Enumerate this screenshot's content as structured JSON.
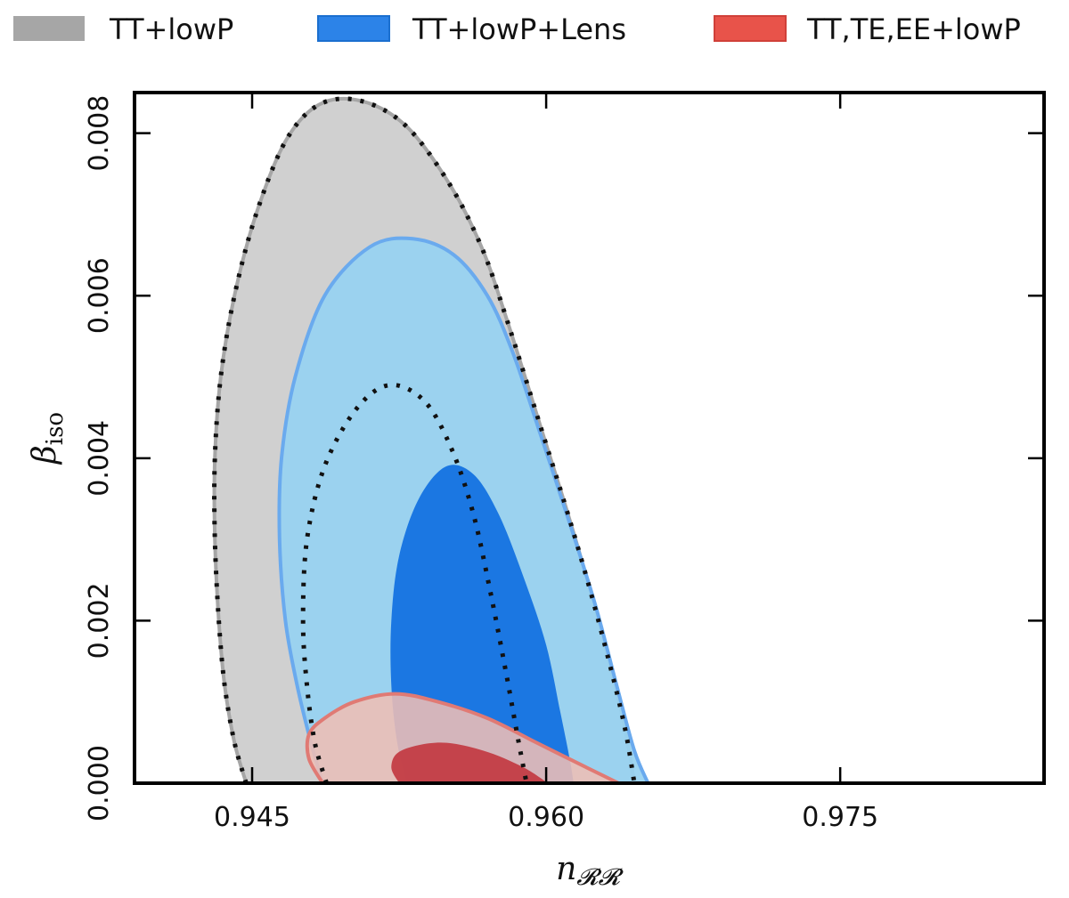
{
  "chart_data": {
    "type": "contour",
    "title": "",
    "xlabel": "n_RR",
    "ylabel": "β_iso",
    "xlabel_main": "n",
    "xlabel_sub": "𝓡𝓡",
    "ylabel_main": "β",
    "ylabel_sub": "iso",
    "xlim": [
      0.939,
      0.9854
    ],
    "ylim": [
      0.0,
      0.0085
    ],
    "x_ticks": [
      0.945,
      0.96,
      0.975
    ],
    "x_tick_labels": [
      "0.945",
      "0.960",
      "0.975"
    ],
    "y_ticks": [
      0.0,
      0.002,
      0.004,
      0.006,
      0.008
    ],
    "y_tick_labels": [
      "0.000",
      "0.002",
      "0.004",
      "0.006",
      "0.008"
    ],
    "legend_position": "top",
    "legend": [
      {
        "label": "TT+lowP",
        "color": "#a6a6a6"
      },
      {
        "label": "TT+lowP+Lens",
        "color": "#2c83e8"
      },
      {
        "label": "TT,TE,EE+lowP",
        "color": "#e8534a"
      }
    ],
    "series": [
      {
        "name": "TT+lowP",
        "fill_68": "#d0d0d0",
        "edge": "#a6a6a6",
        "contour_95": [
          [
            0.9447,
            0.0
          ],
          [
            0.9441,
            0.0005
          ],
          [
            0.9436,
            0.0012
          ],
          [
            0.9433,
            0.002
          ],
          [
            0.9431,
            0.003
          ],
          [
            0.9431,
            0.004
          ],
          [
            0.9434,
            0.005
          ],
          [
            0.9441,
            0.006
          ],
          [
            0.9452,
            0.007
          ],
          [
            0.9467,
            0.0079
          ],
          [
            0.9484,
            0.00835
          ],
          [
            0.9505,
            0.0084
          ],
          [
            0.9528,
            0.0081
          ],
          [
            0.955,
            0.0074
          ],
          [
            0.9567,
            0.0066
          ],
          [
            0.958,
            0.0057
          ],
          [
            0.9597,
            0.0044
          ],
          [
            0.961,
            0.0034
          ],
          [
            0.9621,
            0.0025
          ],
          [
            0.9631,
            0.0016
          ],
          [
            0.964,
            0.0007
          ],
          [
            0.9645,
            0.0
          ]
        ],
        "contour_68": [
          [
            0.9488,
            0.0
          ],
          [
            0.9482,
            0.0005
          ],
          [
            0.9478,
            0.0012
          ],
          [
            0.9476,
            0.002
          ],
          [
            0.9478,
            0.003
          ],
          [
            0.9487,
            0.0039
          ],
          [
            0.9503,
            0.0046
          ],
          [
            0.952,
            0.0049
          ],
          [
            0.9538,
            0.0047
          ],
          [
            0.9552,
            0.0041
          ],
          [
            0.9563,
            0.0033
          ],
          [
            0.9572,
            0.0023
          ],
          [
            0.958,
            0.0013
          ],
          [
            0.9586,
            0.0005
          ],
          [
            0.959,
            0.0
          ]
        ]
      },
      {
        "name": "TT+lowP+Lens",
        "fill_95": "#97d2f1",
        "fill_68": "#1b77e2",
        "edge": "#6aaaee",
        "contour_95": [
          [
            0.9486,
            0.0
          ],
          [
            0.948,
            0.0005
          ],
          [
            0.9473,
            0.0012
          ],
          [
            0.9467,
            0.002
          ],
          [
            0.9464,
            0.003
          ],
          [
            0.9465,
            0.004
          ],
          [
            0.9472,
            0.005
          ],
          [
            0.9487,
            0.006
          ],
          [
            0.951,
            0.0066
          ],
          [
            0.9532,
            0.0067
          ],
          [
            0.9553,
            0.0065
          ],
          [
            0.957,
            0.006
          ],
          [
            0.9583,
            0.0053
          ],
          [
            0.9597,
            0.0043
          ],
          [
            0.9612,
            0.0032
          ],
          [
            0.9625,
            0.0022
          ],
          [
            0.9636,
            0.0012
          ],
          [
            0.9645,
            0.0004
          ],
          [
            0.9652,
            0.0
          ]
        ],
        "contour_68": [
          [
            0.9529,
            0.0
          ],
          [
            0.9524,
            0.0005
          ],
          [
            0.9521,
            0.0012
          ],
          [
            0.9521,
            0.002
          ],
          [
            0.9525,
            0.0028
          ],
          [
            0.9535,
            0.0035
          ],
          [
            0.9549,
            0.0039
          ],
          [
            0.9563,
            0.0038
          ],
          [
            0.9576,
            0.0033
          ],
          [
            0.9589,
            0.0025
          ],
          [
            0.96,
            0.0017
          ],
          [
            0.9607,
            0.0009
          ],
          [
            0.9612,
            0.0003
          ],
          [
            0.9614,
            0.0
          ]
        ]
      },
      {
        "name": "TT,TE,EE+lowP",
        "fill_95": "#eebeb5",
        "fill_68": "#c23a41",
        "edge": "#e07a74",
        "contour_95": [
          [
            0.9486,
            0.0
          ],
          [
            0.9479,
            0.0003
          ],
          [
            0.9479,
            0.0006
          ],
          [
            0.9487,
            0.0008
          ],
          [
            0.9502,
            0.001
          ],
          [
            0.9523,
            0.0011
          ],
          [
            0.9545,
            0.001
          ],
          [
            0.957,
            0.0008
          ],
          [
            0.9595,
            0.0005
          ],
          [
            0.962,
            0.0002
          ],
          [
            0.9637,
            0.0
          ]
        ],
        "contour_68": [
          [
            0.9525,
            0.0
          ],
          [
            0.9521,
            0.0002
          ],
          [
            0.9526,
            0.0004
          ],
          [
            0.9546,
            0.0005
          ],
          [
            0.9568,
            0.0004
          ],
          [
            0.9588,
            0.0002
          ],
          [
            0.9601,
            0.0
          ]
        ]
      }
    ]
  }
}
